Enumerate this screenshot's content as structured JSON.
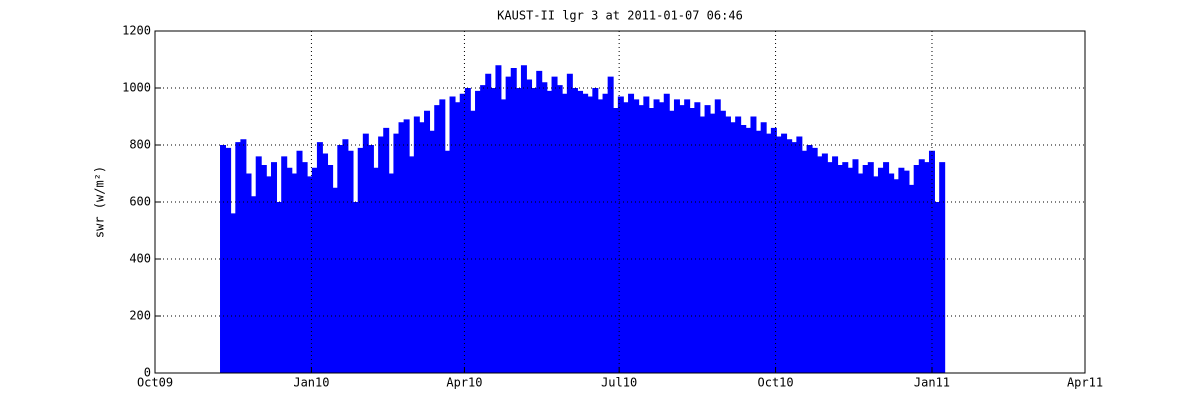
{
  "chart_data": {
    "type": "bar",
    "title": "KAUST-II lgr 3 at 2011-01-07 06:46",
    "y_label": "swr (w/m²)",
    "color": "#0000ff",
    "grid": true,
    "xlim": [
      0,
      547
    ],
    "xticks": [
      {
        "value": 0,
        "label": "Oct09"
      },
      {
        "value": 92,
        "label": "Jan10"
      },
      {
        "value": 182,
        "label": "Apr10"
      },
      {
        "value": 273,
        "label": "Jul10"
      },
      {
        "value": 365,
        "label": "Oct10"
      },
      {
        "value": 457,
        "label": "Jan11"
      },
      {
        "value": 547,
        "label": "Apr11"
      }
    ],
    "ylim": [
      0,
      1200
    ],
    "yticks": [
      0,
      200,
      400,
      600,
      800,
      1000,
      1200
    ],
    "x": [
      40,
      43,
      46,
      49,
      52,
      55,
      58,
      61,
      64,
      67,
      70,
      73,
      76,
      79,
      82,
      85,
      88,
      91,
      94,
      97,
      100,
      103,
      106,
      109,
      112,
      115,
      118,
      121,
      124,
      127,
      130,
      133,
      136,
      139,
      142,
      145,
      148,
      151,
      154,
      157,
      160,
      163,
      166,
      169,
      172,
      175,
      178,
      181,
      184,
      187,
      190,
      193,
      196,
      199,
      202,
      205,
      208,
      211,
      214,
      217,
      220,
      223,
      226,
      229,
      232,
      235,
      238,
      241,
      244,
      247,
      250,
      253,
      256,
      259,
      262,
      265,
      268,
      271,
      274,
      277,
      280,
      283,
      286,
      289,
      292,
      295,
      298,
      301,
      304,
      307,
      310,
      313,
      316,
      319,
      322,
      325,
      328,
      331,
      334,
      337,
      340,
      343,
      346,
      349,
      352,
      355,
      358,
      361,
      364,
      367,
      370,
      373,
      376,
      379,
      382,
      385,
      388,
      391,
      394,
      397,
      400,
      403,
      406,
      409,
      412,
      415,
      418,
      421,
      424,
      427,
      430,
      433,
      436,
      439,
      442,
      445,
      448,
      451,
      454,
      457,
      460,
      463
    ],
    "values": [
      800,
      790,
      560,
      810,
      820,
      700,
      620,
      760,
      730,
      690,
      740,
      600,
      760,
      720,
      700,
      780,
      740,
      690,
      720,
      810,
      770,
      730,
      650,
      800,
      820,
      780,
      600,
      790,
      840,
      800,
      720,
      830,
      860,
      700,
      840,
      880,
      890,
      760,
      900,
      880,
      920,
      850,
      940,
      960,
      780,
      970,
      950,
      980,
      1000,
      920,
      990,
      1010,
      1050,
      1000,
      1080,
      960,
      1040,
      1070,
      1000,
      1080,
      1030,
      1000,
      1060,
      1020,
      990,
      1040,
      1010,
      980,
      1050,
      1000,
      990,
      980,
      970,
      1000,
      960,
      980,
      1040,
      930,
      970,
      950,
      980,
      960,
      940,
      970,
      930,
      960,
      950,
      980,
      920,
      960,
      940,
      960,
      930,
      950,
      900,
      940,
      910,
      960,
      920,
      900,
      880,
      900,
      870,
      860,
      900,
      850,
      880,
      840,
      860,
      830,
      840,
      820,
      810,
      830,
      780,
      800,
      790,
      760,
      770,
      740,
      760,
      730,
      740,
      720,
      750,
      700,
      730,
      740,
      690,
      720,
      740,
      700,
      680,
      720,
      710,
      660,
      730,
      750,
      740,
      780,
      600,
      740
    ]
  }
}
